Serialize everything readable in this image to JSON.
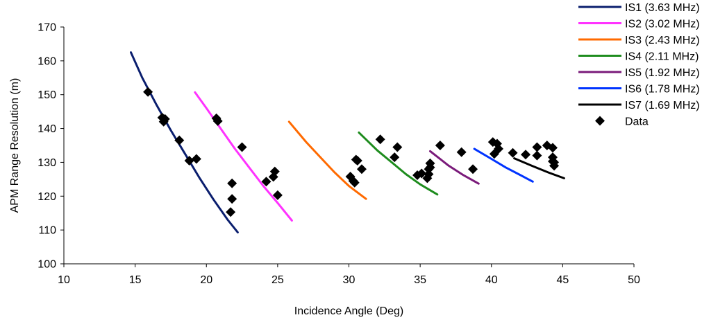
{
  "chart_data": {
    "type": "scatter",
    "title": "",
    "xlabel": "Incidence Angle (Deg)",
    "ylabel": "APM Range Resolution (m)",
    "xlim": [
      10,
      50
    ],
    "ylim": [
      100,
      170
    ],
    "xticks": [
      10,
      15,
      20,
      25,
      30,
      35,
      40,
      45,
      50
    ],
    "yticks": [
      100,
      110,
      120,
      130,
      140,
      150,
      160,
      170
    ],
    "grid": false,
    "legend_position": "top-right",
    "series": [
      {
        "name": "IS1 (3.63 MHz)",
        "kind": "line",
        "color": "#0a1e6e",
        "x": [
          14.7,
          15.5,
          16.5,
          17.5,
          18.5,
          19.5,
          20.5,
          21.5,
          22.2
        ],
        "y": [
          162.5,
          155,
          147,
          139.5,
          132.5,
          125.5,
          119,
          113,
          109.3
        ]
      },
      {
        "name": "IS2 (3.02 MHz)",
        "kind": "line",
        "color": "#ff33ff",
        "x": [
          19.2,
          20,
          21,
          22,
          23,
          24,
          25,
          26
        ],
        "y": [
          150.7,
          146,
          140,
          134,
          128.5,
          123,
          118,
          112.8
        ]
      },
      {
        "name": "IS3 (2.43 MHz)",
        "kind": "line",
        "color": "#ff6a00",
        "x": [
          25.8,
          27,
          28,
          29,
          30,
          31.2
        ],
        "y": [
          142,
          136,
          131.5,
          127,
          123,
          119.2
        ]
      },
      {
        "name": "IS4 (2.11 MHz)",
        "kind": "line",
        "color": "#1e8c1e",
        "x": [
          30.7,
          32,
          33,
          34,
          35,
          36.2
        ],
        "y": [
          138.8,
          133.5,
          130,
          126.5,
          123.5,
          120.5
        ]
      },
      {
        "name": "IS5 (1.92 MHz)",
        "kind": "line",
        "color": "#7a1a7a",
        "x": [
          35.7,
          37,
          38,
          39.1
        ],
        "y": [
          133.3,
          129,
          126.3,
          123.7
        ]
      },
      {
        "name": "IS6 (1.78 MHz)",
        "kind": "line",
        "color": "#0033ff",
        "x": [
          38.8,
          40,
          41,
          42,
          42.9
        ],
        "y": [
          134,
          131,
          128.5,
          126.3,
          124.3
        ]
      },
      {
        "name": "IS7 (1.69 MHz)",
        "kind": "line",
        "color": "#000000",
        "x": [
          41.6,
          43,
          44,
          45.1
        ],
        "y": [
          131.2,
          128.7,
          127,
          125.3
        ]
      },
      {
        "name": "Data",
        "kind": "marker",
        "color": "#000000",
        "x": [
          15.9,
          16.9,
          17.0,
          17.1,
          18.1,
          18.8,
          19.3,
          20.7,
          20.8,
          21.7,
          21.8,
          21.8,
          22.5,
          24.2,
          24.7,
          24.8,
          25.0,
          30.1,
          30.3,
          30.4,
          30.5,
          30.6,
          30.9,
          32.2,
          33.2,
          33.4,
          34.8,
          35.1,
          35.5,
          35.6,
          35.6,
          35.7,
          35.7,
          36.4,
          37.9,
          38.7,
          40.1,
          40.2,
          40.4,
          40.5,
          41.5,
          42.4,
          43.2,
          43.2,
          43.9,
          44.3,
          44.3,
          44.3,
          44.4,
          44.4
        ],
        "y": [
          150.8,
          143.2,
          142.0,
          142.8,
          136.5,
          130.5,
          131.0,
          143.0,
          142.2,
          115.3,
          119.2,
          123.8,
          134.5,
          124.3,
          125.7,
          127.3,
          120.3,
          125.8,
          124.5,
          124.0,
          130.8,
          130.5,
          128.0,
          136.8,
          131.5,
          134.5,
          126.2,
          126.7,
          125.3,
          126.5,
          128.0,
          128.5,
          129.7,
          135.0,
          133.0,
          128.0,
          136.0,
          132.5,
          135.5,
          134.0,
          132.8,
          132.3,
          134.5,
          132.0,
          135.0,
          134.3,
          131.5,
          130.3,
          129.0,
          130.0
        ]
      }
    ]
  }
}
